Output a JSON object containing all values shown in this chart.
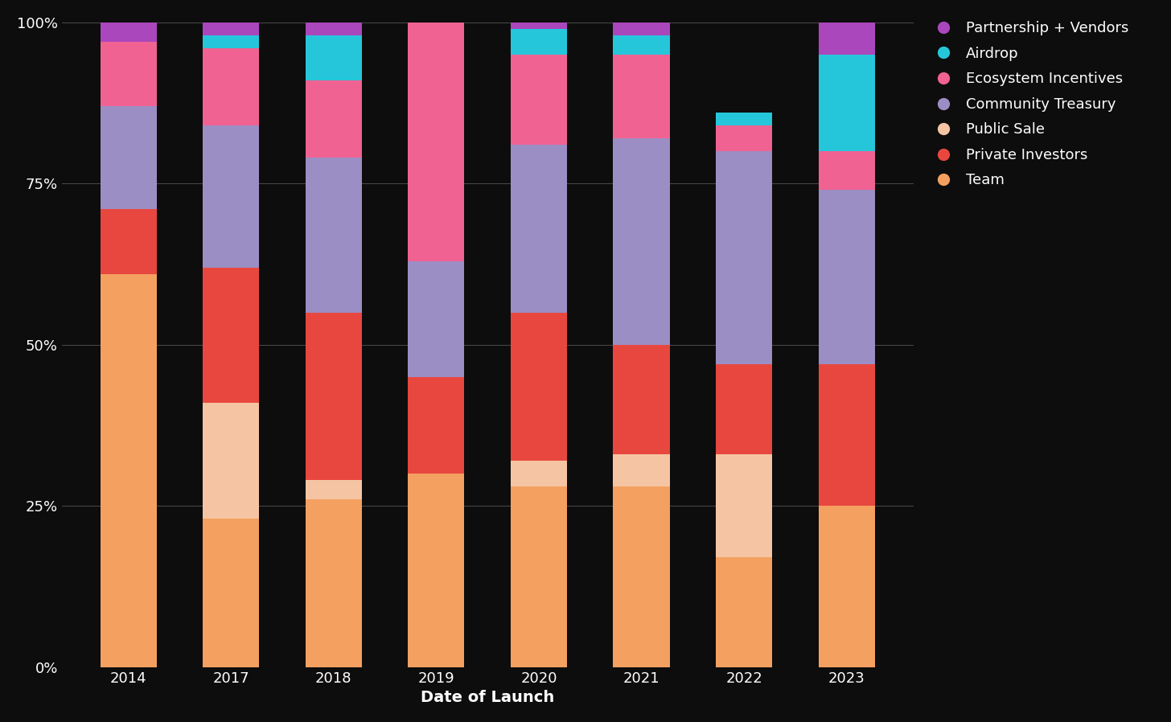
{
  "categories": [
    "2014",
    "2017",
    "2018",
    "2019",
    "2020",
    "2021",
    "2022",
    "2023"
  ],
  "series": {
    "Team": [
      0.61,
      0.23,
      0.26,
      0.3,
      0.28,
      0.28,
      0.17,
      0.25
    ],
    "Public Sale": [
      0.0,
      0.18,
      0.03,
      0.0,
      0.04,
      0.05,
      0.16,
      0.0
    ],
    "Private Investors": [
      0.1,
      0.21,
      0.26,
      0.15,
      0.23,
      0.17,
      0.14,
      0.22
    ],
    "Community Treasury": [
      0.16,
      0.22,
      0.24,
      0.18,
      0.26,
      0.32,
      0.33,
      0.27
    ],
    "Ecosystem Incentives": [
      0.1,
      0.12,
      0.12,
      0.37,
      0.14,
      0.13,
      0.04,
      0.06
    ],
    "Airdrop": [
      0.0,
      0.02,
      0.07,
      0.0,
      0.04,
      0.03,
      0.02,
      0.15
    ],
    "Partnership + Vendors": [
      0.03,
      0.02,
      0.02,
      0.0,
      0.01,
      0.02,
      0.0,
      0.05
    ]
  },
  "colors": {
    "Team": "#F4A060",
    "Private Investors": "#E8473F",
    "Public Sale": "#F5C5A3",
    "Community Treasury": "#9B8EC4",
    "Ecosystem Incentives": "#F06292",
    "Airdrop": "#26C6DA",
    "Partnership + Vendors": "#AB47BC"
  },
  "stack_order": [
    "Team",
    "Public Sale",
    "Private Investors",
    "Community Treasury",
    "Ecosystem Incentives",
    "Airdrop",
    "Partnership + Vendors"
  ],
  "legend_order": [
    "Partnership + Vendors",
    "Airdrop",
    "Ecosystem Incentives",
    "Community Treasury",
    "Public Sale",
    "Private Investors",
    "Team"
  ],
  "background_color": "#0d0d0d",
  "text_color": "#ffffff",
  "grid_color": "#4a4a4a",
  "xlabel": "Date of Launch",
  "bar_width": 0.55,
  "figsize": [
    14.56,
    8.98
  ],
  "dpi": 100,
  "ytick_labels": [
    "0%",
    "25%",
    "50%",
    "75%",
    "100%"
  ],
  "ytick_vals": [
    0.0,
    0.25,
    0.5,
    0.75,
    1.0
  ]
}
